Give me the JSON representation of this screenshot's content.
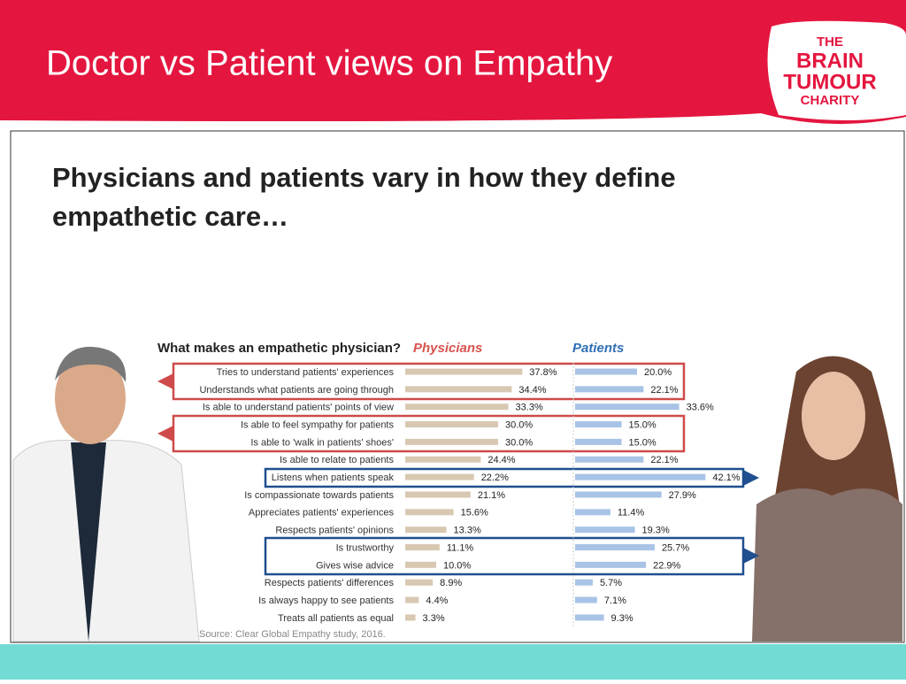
{
  "slide": {
    "title": "Doctor vs Patient views on Empathy",
    "logo": [
      "THE",
      "BRAIN",
      "TUMOUR",
      "CHARITY"
    ],
    "headline": [
      "Physicians and patients vary in how they define",
      "empathetic care…"
    ],
    "source": "Source: Clear Global Empathy study, 2016."
  },
  "chart_data": {
    "type": "bar",
    "title": "What makes an empathetic physician?",
    "categories": [
      "Tries to understand patients' experiences",
      "Understands what patients are going through",
      "Is able to understand patients' points of view",
      "Is able to feel sympathy for patients",
      "Is able to 'walk in patients' shoes'",
      "Is able to relate to patients",
      "Listens when patients speak",
      "Is compassionate towards patients",
      "Appreciates patients' experiences",
      "Respects patients' opinions",
      "Is trustworthy",
      "Gives wise advice",
      "Respects patients' differences",
      "Is always happy to see patients",
      "Treats all patients as equal"
    ],
    "series": [
      {
        "name": "Physicians",
        "color": "#d8c8b2",
        "values": [
          37.8,
          34.4,
          33.3,
          30.0,
          30.0,
          24.4,
          22.2,
          21.1,
          15.6,
          13.3,
          11.1,
          10.0,
          8.9,
          4.4,
          3.3
        ],
        "value_labels": [
          "37.8%",
          "34.4%",
          "33.3%",
          "30.0%",
          "30.0%",
          "24.4%",
          "22.2%",
          "21.1%",
          "15.6%",
          "13.3%",
          "11.1%",
          "10.0%",
          "8.9%",
          "4.4%",
          "3.3%"
        ]
      },
      {
        "name": "Patients",
        "color": "#a8c3e6",
        "values": [
          20.0,
          22.1,
          33.6,
          15.0,
          15.0,
          22.1,
          42.1,
          27.9,
          11.4,
          19.3,
          25.7,
          22.9,
          5.7,
          7.1,
          9.3
        ],
        "value_labels": [
          "20.0%",
          "22.1%",
          "33.6%",
          "15.0%",
          "15.0%",
          "22.1%",
          "42.1%",
          "27.9%",
          "11.4%",
          "19.3%",
          "25.7%",
          "22.9%",
          "5.7%",
          "7.1%",
          "9.3%"
        ]
      }
    ]
  }
}
